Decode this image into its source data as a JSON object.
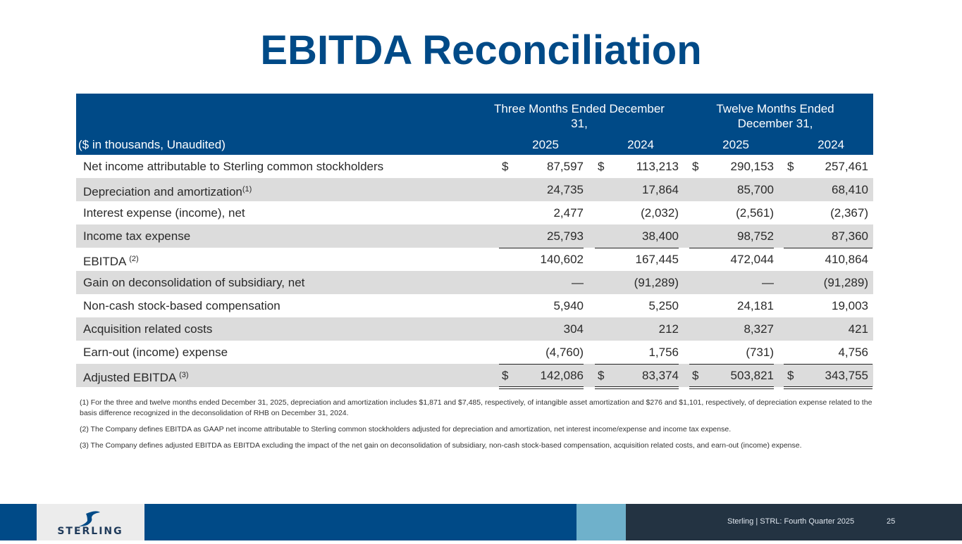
{
  "title": "EBITDA Reconciliation",
  "header": {
    "units": "($ in thousands, Unaudited)",
    "group1": "Three Months Ended December 31,",
    "group2": "Twelve Months Ended December 31,",
    "years": [
      "2025",
      "2024",
      "2025",
      "2024"
    ]
  },
  "rows": [
    {
      "label": "Net income attributable to Sterling common stockholders",
      "sup": "",
      "cur": true,
      "values": [
        "87,597",
        "113,213",
        "290,153",
        "257,461"
      ]
    },
    {
      "label": "Depreciation and amortization",
      "sup": "(1)",
      "cur": false,
      "values": [
        "24,735",
        "17,864",
        "85,700",
        "68,410"
      ]
    },
    {
      "label": "Interest expense (income), net",
      "sup": "",
      "cur": false,
      "values": [
        "2,477",
        "(2,032)",
        "(2,561)",
        "(2,367)"
      ]
    },
    {
      "label": "Income tax expense",
      "sup": "",
      "cur": false,
      "values": [
        "25,793",
        "38,400",
        "98,752",
        "87,360"
      ]
    },
    {
      "label": "EBITDA ",
      "sup": "(2)",
      "cur": false,
      "values": [
        "140,602",
        "167,445",
        "472,044",
        "410,864"
      ]
    },
    {
      "label": "Gain on deconsolidation of subsidiary, net",
      "sup": "",
      "cur": false,
      "values": [
        "—",
        "(91,289)",
        "—",
        "(91,289)"
      ]
    },
    {
      "label": "Non-cash stock-based compensation",
      "sup": "",
      "cur": false,
      "values": [
        "5,940",
        "5,250",
        "24,181",
        "19,003"
      ]
    },
    {
      "label": "Acquisition related costs",
      "sup": "",
      "cur": false,
      "values": [
        "304",
        "212",
        "8,327",
        "421"
      ]
    },
    {
      "label": "Earn-out (income) expense",
      "sup": "",
      "cur": false,
      "values": [
        "(4,760)",
        "1,756",
        "(731)",
        "4,756"
      ]
    },
    {
      "label": "Adjusted EBITDA ",
      "sup": "(3)",
      "cur": true,
      "values": [
        "142,086",
        "83,374",
        "503,821",
        "343,755"
      ]
    }
  ],
  "currency_symbol": "$",
  "notes": [
    "(1) For the three and twelve months ended December 31, 2025, depreciation and amortization includes $1,871 and $7,485, respectively, of intangible asset amortization and $276 and $1,101, respectively, of depreciation expense related to the  basis difference recognized in the deconsolidation of RHB on December 31, 2024.",
    "(2) The Company defines EBITDA as GAAP net income attributable to Sterling common stockholders adjusted for depreciation and amortization, net interest income/expense and income tax expense.",
    "(3) The Company defines adjusted EBITDA as EBITDA excluding the impact of the net gain on deconsolidation of subsidiary, non-cash stock-based compensation, acquisition related costs, and earn-out (income) expense."
  ],
  "footer": {
    "logo_text": "STERLING",
    "caption": "Sterling | STRL:  Fourth Quarter 2025",
    "page": "25"
  },
  "colors": {
    "brand": "#004a87",
    "accent": "#6fb1cb",
    "dark": "#233342"
  }
}
